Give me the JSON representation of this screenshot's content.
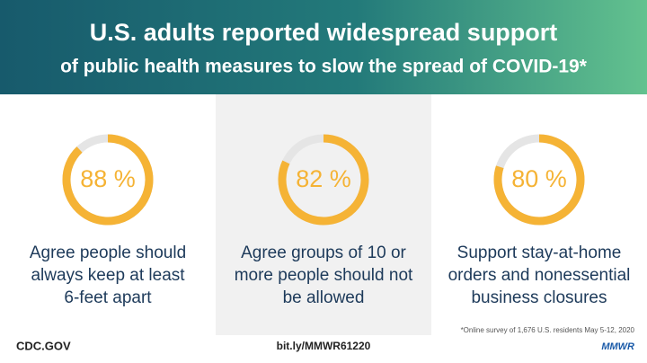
{
  "header": {
    "lines": [
      "U.S. adults reported widespread support",
      "of public health measures to slow the spread of COVID-19*"
    ]
  },
  "chart_data": [
    {
      "type": "donut",
      "values": [
        88
      ],
      "value_labels": [
        "88 %"
      ],
      "ylim": [
        0,
        100
      ],
      "color": "#f5b335",
      "track_color": "#e5e5e5",
      "caption": [
        "Agree people should",
        "always keep at least",
        "6-feet apart"
      ]
    },
    {
      "type": "donut",
      "values": [
        82
      ],
      "value_labels": [
        "82 %"
      ],
      "ylim": [
        0,
        100
      ],
      "color": "#f5b335",
      "track_color": "#e5e5e5",
      "caption": [
        "Agree groups of 10 or",
        "more people should not",
        "be allowed"
      ]
    },
    {
      "type": "donut",
      "values": [
        80
      ],
      "value_labels": [
        "80 %"
      ],
      "ylim": [
        0,
        100
      ],
      "color": "#f5b335",
      "track_color": "#e5e5e5",
      "caption": [
        "Support stay-at-home",
        "orders and nonessential",
        "business closures"
      ]
    }
  ],
  "footnote": "*Online survey of 1,676 U.S. residents May 5-12, 2020",
  "footer": {
    "left": "CDC.GOV",
    "center": "bit.ly/MMWR61220",
    "right": "MMWR"
  }
}
